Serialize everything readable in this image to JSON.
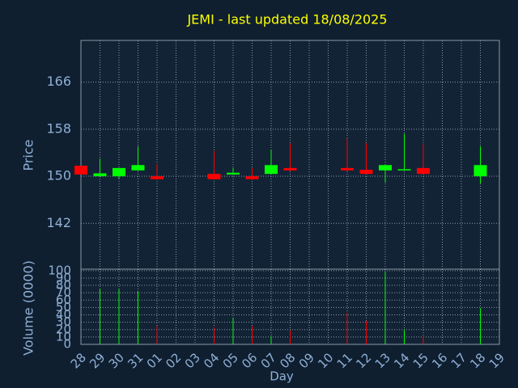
{
  "chart_data": {
    "type": "candlestick",
    "title": "JEMI - last updated 18/08/2025",
    "xlabel": "Day",
    "ylabel": "Price",
    "categories": [
      "28",
      "29",
      "30",
      "31",
      "01",
      "02",
      "03",
      "04",
      "05",
      "06",
      "07",
      "08",
      "09",
      "10",
      "11",
      "12",
      "13",
      "14",
      "15",
      "16",
      "17",
      "18",
      "19"
    ],
    "open": [
      151.8,
      150.0,
      150.0,
      151.0,
      150.0,
      null,
      null,
      150.4,
      150.3,
      150.0,
      150.4,
      151.4,
      null,
      null,
      151.4,
      151.1,
      151.0,
      151.1,
      151.4,
      null,
      null,
      150.0,
      null
    ],
    "high": [
      151.8,
      153.0,
      151.4,
      155.1,
      152.1,
      null,
      null,
      154.3,
      151.4,
      151.4,
      154.5,
      155.6,
      null,
      null,
      156.5,
      155.6,
      151.9,
      157.2,
      155.5,
      null,
      null,
      155.1,
      null
    ],
    "low": [
      150.3,
      150.0,
      149.6,
      151.0,
      149.4,
      null,
      null,
      149.4,
      150.2,
      149.4,
      150.4,
      150.9,
      null,
      null,
      150.9,
      150.4,
      148.9,
      151.0,
      150.4,
      null,
      null,
      148.8,
      null
    ],
    "close": [
      150.3,
      150.5,
      151.4,
      151.9,
      149.5,
      null,
      null,
      149.5,
      150.6,
      149.5,
      151.9,
      151.0,
      null,
      null,
      151.0,
      150.4,
      151.9,
      151.2,
      150.4,
      null,
      null,
      151.9,
      null
    ],
    "ylim": [
      134.2,
      173.1
    ],
    "yticks": [
      142,
      150,
      158,
      166
    ],
    "grid": true,
    "up_color": "#00ff00",
    "down_color": "#ff0000",
    "volume": {
      "type": "bar",
      "ylabel": "Volume (0000)",
      "values": [
        null,
        75,
        75,
        72,
        25,
        null,
        null,
        23,
        36,
        25,
        11,
        19,
        null,
        null,
        43,
        32,
        99,
        20,
        10,
        null,
        null,
        49,
        null
      ],
      "ylim": [
        0,
        102
      ],
      "yticks": [
        0,
        10,
        20,
        30,
        40,
        50,
        60,
        70,
        80,
        90,
        100
      ]
    }
  }
}
